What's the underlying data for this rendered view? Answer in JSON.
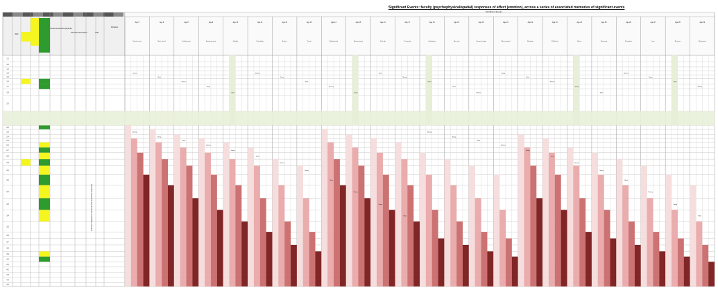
{
  "title": "Significant Events: faculty (psychophysical/spatial) responses of affect (emotion), across a series of associated memories of significant events",
  "subtitle": "Significant Events",
  "left_headers": {
    "num": "Ref",
    "emotion": "Emotional Association",
    "response": "Response (emotion/physical)",
    "colour_a": "Colour",
    "colour_b": "Key",
    "rate": "Rate",
    "activation": "Activation",
    "vertical_note": "Activation of physical, emotional and associative responses"
  },
  "event_headers": [
    "Age 5",
    "Age 6",
    "Age 8",
    "Age 9",
    "Age 10",
    "Age 11",
    "Age 12",
    "Age 13",
    "Age 14",
    "Age 15",
    "Age 16",
    "Age 17",
    "Age 18",
    "Age 19",
    "Age 20",
    "Age 21",
    "Age 22",
    "Age 23",
    "Age 24",
    "Age 25",
    "Age 26",
    "Age 27",
    "Age 28",
    "Age 29"
  ],
  "event_subheaders": [
    "School event",
    "New school",
    "Family move",
    "Sporting event",
    "Holiday",
    "Friendship",
    "Exams",
    "Travel",
    "Relationship",
    "Bereavement",
    "First job",
    "University",
    "Graduation",
    "New city",
    "Career change",
    "Move abroad",
    "Marriage",
    "Child born",
    "Illness",
    "Recovery",
    "Promotion",
    "Loss",
    "Reunion",
    "Retirement"
  ],
  "row_labels": [
    "1.1",
    "1.2",
    "1.3",
    "1.4",
    "1.5",
    "1.6",
    "1.7",
    "1.8",
    "2.0",
    "2.1",
    "2.2",
    "2.3",
    "2.4",
    "2.5",
    "2.6",
    "2.7",
    "2.8",
    "2.9",
    "3.0",
    "3.1",
    "3.2",
    "3.3",
    "3.4",
    "3.5",
    "3.6",
    "3.7",
    "3.8",
    "3.9",
    "4.0",
    "4.1",
    "4.2",
    "4.3",
    "4.4",
    "4.5"
  ],
  "markers": [
    "Memory",
    "Strong",
    "Weak"
  ],
  "colors": {
    "green": "#2e9b2e",
    "yellow": "#f5f51f",
    "band": "#e8efd9",
    "pink_light": "#f6dcdc",
    "pink_mid": "#e9a8a8",
    "red_mid": "#c96a6a",
    "red_dark": "#7a1a1a",
    "header": "#dcdcdc",
    "grid": "#9a9a9a"
  }
}
